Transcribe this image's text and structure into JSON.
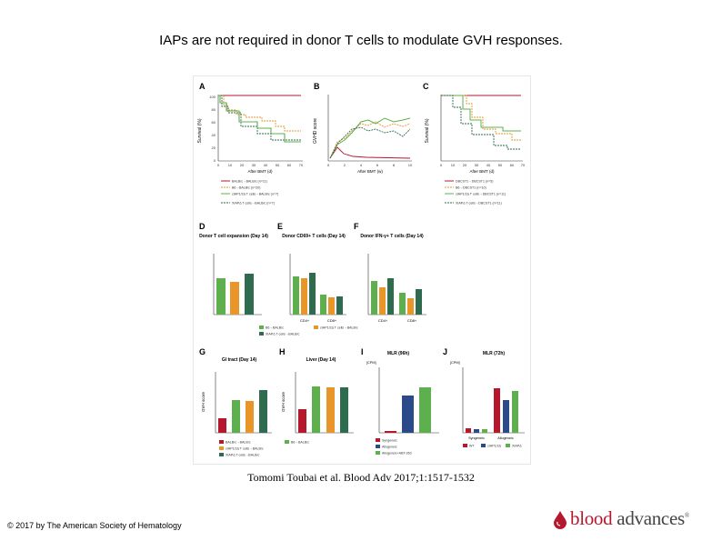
{
  "slide": {
    "title": "IAPs are not required in donor T cells to modulate GVH responses.",
    "citation": "Tomomi Toubai et al. Blood Adv 2017;1:1517-1532",
    "copyright": "© 2017 by The American Society of Hematology",
    "logo_text_1": "blood",
    "logo_text_2": " advances",
    "logo_mark": "®"
  },
  "colors": {
    "red": "#b5182d",
    "green": "#5db04d",
    "orange": "#e8952a",
    "dark": "#2e6b4f",
    "navy": "#2b4a8a",
    "gray": "#888888"
  },
  "figure": {
    "panels": {
      "A": "A",
      "B": "B",
      "C": "C",
      "D": "D",
      "E": "E",
      "F": "F",
      "G": "G",
      "H": "H",
      "I": "I",
      "J": "J"
    },
    "panel_titles": {
      "D": "Donor T cell expansion (Day 14)",
      "E": "Donor CD69+ T cells (Day 14)",
      "F": "Donor IFN-γ+ T cells (Day 14)",
      "G": "GI tract (Day 14)",
      "H": "Liver (Day 14)",
      "I": "MLR (96h)",
      "J": "MLR (72h)"
    },
    "axis_labels": {
      "a_y": "Survival (%)",
      "a_x": "After BMT (d)",
      "b_y": "GVHD score",
      "b_x": "After BMT (w)",
      "c_y": "Survival (%)",
      "c_x": "After BMT (d)",
      "gh_y": "GVH score",
      "cpm": "[CPM]"
    },
    "a_ticks_x": [
      "0",
      "10",
      "20",
      "30",
      "40",
      "50",
      "60",
      "70"
    ],
    "a_ticks_y": [
      "100",
      "80",
      "60",
      "40",
      "20",
      "0"
    ],
    "b_ticks_x": [
      "0",
      "2",
      "4",
      "6",
      "8",
      "10"
    ],
    "c_ticks_x": [
      "0",
      "10",
      "20",
      "30",
      "40",
      "50",
      "60",
      "70"
    ],
    "de_cats": [
      "CD4+",
      "CD8+"
    ],
    "legend_a": [
      "BALB/c→BALB/c (n=11)",
      "B6→BALB/c (n=20)",
      "cIAP1/2Δ T cells→BALB/c (n=7)",
      "XIAPΔ T cells→BALB/c (n=7)"
    ],
    "legend_c": [
      "DBCST1→DBCST1 (n=5)",
      "B6→DBCST1 (n=10)",
      "cIAP1/2Δ T cells→DBCST1 (n=11)",
      "XIAPΔ T cells→DBCST1 (n=11)"
    ],
    "legend_def": [
      "B6→BALB/c",
      "cIAP1/2Δ T cells→BALB/c",
      "XIAPΔ T cells→BALB/c"
    ],
    "legend_gh": [
      "BALB/c→BALB/c",
      "B6→BALB/c",
      "cIAP1/2Δ T cells→BALB/c",
      "XIAPΔ T cells→BALB/c"
    ],
    "legend_i": [
      "Syngeneic",
      "Allogeneic",
      "Allogeneic+ABT-263"
    ],
    "legend_j": [
      "WT",
      "cIAP1/2Δ",
      "XIAPΔ"
    ],
    "j_cats": [
      "Syngeneic",
      "Allogeneic"
    ]
  }
}
